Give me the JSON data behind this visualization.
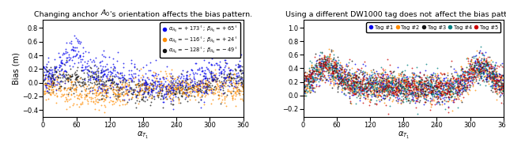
{
  "left_title_plain": "Changing anchor ",
  "left_title_math": "$A_0$",
  "left_title_suffix_plain": "'s ",
  "left_title_underlined": "orientation affects the bias",
  "left_title_end": " pattern.",
  "right_title_prefix": "Using a different DW1000 tag ",
  "right_title_underlined": "does not",
  "right_title_suffix": " affect the bias pattern.",
  "left_xlabel": "$\\alpha_{T_1}$",
  "right_xlabel": "$\\alpha_{T_1}$",
  "left_ylabel": "Bias (m)",
  "left_legend": [
    {
      "label": "$\\alpha_{A_0} = +173^\\circ$; $\\beta_{A_0} = +65^\\circ$",
      "color": "#0000EE"
    },
    {
      "label": "$\\alpha_{A_0} = -116^\\circ$; $\\beta_{A_0} = +24^\\circ$",
      "color": "#FF8C00"
    },
    {
      "label": "$\\alpha_{A_0} = -128^\\circ$; $\\beta_{A_0} = -49^\\circ$",
      "color": "#111111"
    }
  ],
  "right_legend": [
    {
      "label": "Tag #1",
      "color": "#0000EE"
    },
    {
      "label": "Tag #2",
      "color": "#FF8C00"
    },
    {
      "label": "Tag #3",
      "color": "#111111"
    },
    {
      "label": "Tag #4",
      "color": "#008080"
    },
    {
      "label": "Tag #5",
      "color": "#CC0000"
    }
  ],
  "left_ylim": [
    -0.5,
    0.92
  ],
  "right_ylim": [
    -0.32,
    1.12
  ],
  "left_yticks": [
    -0.4,
    -0.2,
    0.0,
    0.2,
    0.4,
    0.6,
    0.8
  ],
  "right_yticks": [
    -0.2,
    0.0,
    0.2,
    0.4,
    0.6,
    0.8,
    1.0
  ],
  "xlim": [
    0,
    360
  ],
  "xticks": [
    0,
    60,
    120,
    180,
    240,
    300,
    360
  ],
  "n_points": 700,
  "seed": 42
}
